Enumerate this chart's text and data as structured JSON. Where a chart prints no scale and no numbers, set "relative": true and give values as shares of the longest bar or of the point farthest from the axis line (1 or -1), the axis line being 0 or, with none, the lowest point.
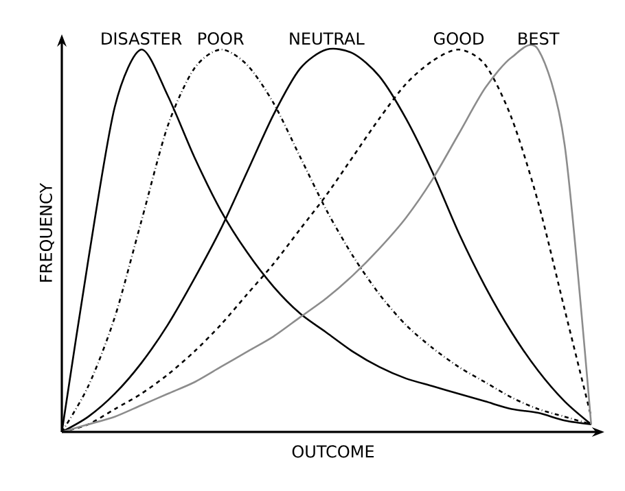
{
  "chart_data": {
    "type": "line",
    "relative": true,
    "xlabel": "OUTCOME",
    "ylabel": "FREQUENCY",
    "marker": "none",
    "categories": [
      null,
      null,
      null,
      null,
      null,
      null,
      null,
      null,
      null,
      null,
      null,
      null,
      null,
      null,
      null,
      null,
      null,
      null,
      null,
      null,
      null
    ],
    "series": [
      {
        "name": "DISASTER",
        "color": "#000000",
        "line_style": "solid",
        "values": [
          0,
          0.45,
          0.85,
          1.0,
          0.88,
          0.72,
          0.58,
          0.47,
          0.38,
          0.31,
          0.26,
          0.21,
          0.17,
          0.14,
          0.12,
          0.1,
          0.08,
          0.06,
          0.05,
          0.03,
          0.02
        ]
      },
      {
        "name": "POOR",
        "color": "#000000",
        "line_style": "dashdotted",
        "values": [
          0,
          0.12,
          0.3,
          0.55,
          0.8,
          0.95,
          1.0,
          0.96,
          0.86,
          0.72,
          0.58,
          0.46,
          0.36,
          0.28,
          0.22,
          0.17,
          0.13,
          0.09,
          0.06,
          0.04,
          0.02
        ]
      },
      {
        "name": "NEUTRAL",
        "color": "#000000",
        "line_style": "solid",
        "values": [
          0,
          0.04,
          0.1,
          0.18,
          0.28,
          0.4,
          0.53,
          0.68,
          0.83,
          0.95,
          1.0,
          0.99,
          0.93,
          0.82,
          0.68,
          0.52,
          0.38,
          0.26,
          0.16,
          0.08,
          0.02
        ]
      },
      {
        "name": "GOOD",
        "color": "#000000",
        "line_style": "dashed",
        "values": [
          0,
          0.02,
          0.06,
          0.1,
          0.15,
          0.21,
          0.28,
          0.36,
          0.44,
          0.53,
          0.62,
          0.72,
          0.82,
          0.91,
          0.97,
          1.0,
          0.96,
          0.82,
          0.6,
          0.32,
          0.04
        ]
      },
      {
        "name": "BEST",
        "color": "#8c8c8c",
        "line_style": "solid",
        "values": [
          0,
          0.02,
          0.04,
          0.07,
          0.1,
          0.13,
          0.17,
          0.21,
          0.25,
          0.3,
          0.35,
          0.41,
          0.48,
          0.56,
          0.66,
          0.78,
          0.9,
          0.98,
          1.0,
          0.75,
          0.02
        ]
      }
    ]
  }
}
